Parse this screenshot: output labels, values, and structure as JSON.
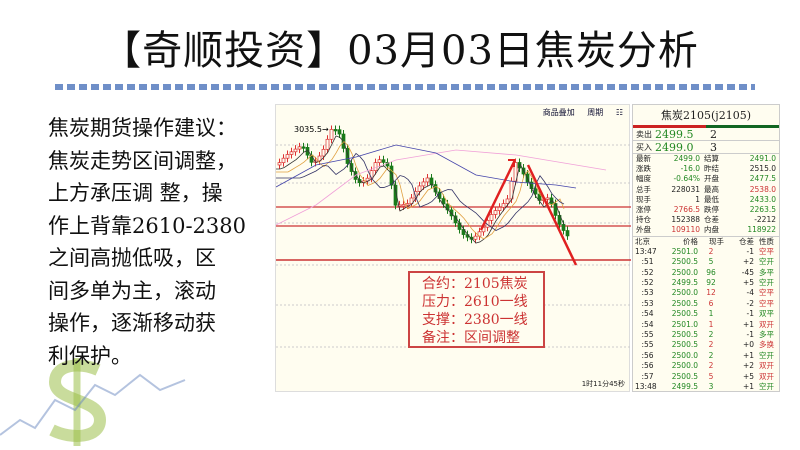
{
  "title": "【奇顺投资】03月03日焦炭分析",
  "advice": [
    "焦炭期货操作建议：",
    "焦炭走势区间调整，",
    "上方承压调 整，操",
    "作上背靠2610-2380",
    "之间高抛低吸，区",
    "间多单为主，滚动",
    "操作，逐渐移动获",
    "利保护。"
  ],
  "chart": {
    "toolbar": [
      "商品叠加",
      "周期"
    ],
    "high_label": "3035.5",
    "timer": "1时11分45秒",
    "info": [
      "合约：2105焦炭",
      "压力：2610一线",
      "支撑：2380一线",
      "备注：区间调整"
    ],
    "colors": {
      "up": "#d33",
      "down": "#1a7a1a",
      "trend": "#e02020"
    }
  },
  "quote": {
    "title": "焦炭2105(j2105)",
    "sell": {
      "label": "卖出",
      "price": "2499.5",
      "vol": "2"
    },
    "buy": {
      "label": "买入",
      "price": "2499.0",
      "vol": "3"
    },
    "stats": [
      [
        "最新",
        "2499.0",
        "g",
        "结算",
        "2491.0",
        "g"
      ],
      [
        "涨跌",
        "-16.0",
        "g",
        "昨结",
        "2515.0",
        ""
      ],
      [
        "幅度",
        "-0.64%",
        "g",
        "开盘",
        "2477.5",
        "g"
      ],
      [
        "总手",
        "228031",
        "",
        "最高",
        "2538.0",
        "r"
      ],
      [
        "现手",
        "1",
        "",
        "最低",
        "2433.0",
        "g"
      ],
      [
        "涨停",
        "2766.5",
        "r",
        "跌停",
        "2263.5",
        "g"
      ],
      [
        "持仓",
        "152388",
        "",
        "仓差",
        "-2212",
        ""
      ],
      [
        "外盘",
        "109110",
        "r",
        "内盘",
        "118922",
        "g"
      ]
    ],
    "tick_header": [
      "北京",
      "价格",
      "现手",
      "仓差",
      "性质"
    ],
    "ticks": [
      [
        "13:47",
        "2501.0",
        "2",
        "r",
        "-1",
        "空平",
        "r"
      ],
      [
        ":51",
        "2500.5",
        "5",
        "g",
        "+2",
        "空开",
        "g"
      ],
      [
        ":52",
        "2500.0",
        "96",
        "g",
        "-45",
        "多平",
        "g"
      ],
      [
        ":52",
        "2499.5",
        "92",
        "g",
        "+5",
        "空开",
        "g"
      ],
      [
        ":53",
        "2500.0",
        "12",
        "r",
        "-4",
        "空平",
        "r"
      ],
      [
        ":53",
        "2500.5",
        "6",
        "r",
        "-2",
        "空平",
        "r"
      ],
      [
        ":54",
        "2500.5",
        "1",
        "g",
        "-1",
        "双平",
        "g"
      ],
      [
        ":54",
        "2501.0",
        "1",
        "r",
        "+1",
        "双开",
        "r"
      ],
      [
        ":55",
        "2500.5",
        "2",
        "g",
        "-1",
        "多平",
        "g"
      ],
      [
        ":55",
        "2500.5",
        "2",
        "r",
        "+0",
        "多换",
        "r"
      ],
      [
        ":56",
        "2500.0",
        "2",
        "g",
        "+1",
        "空开",
        "g"
      ],
      [
        ":56",
        "2500.0",
        "2",
        "r",
        "+2",
        "双开",
        "r"
      ],
      [
        ":57",
        "2500.5",
        "5",
        "r",
        "+5",
        "双开",
        "r"
      ],
      [
        "13:48",
        "2499.5",
        "3",
        "g",
        "+1",
        "空开",
        "g"
      ]
    ]
  }
}
